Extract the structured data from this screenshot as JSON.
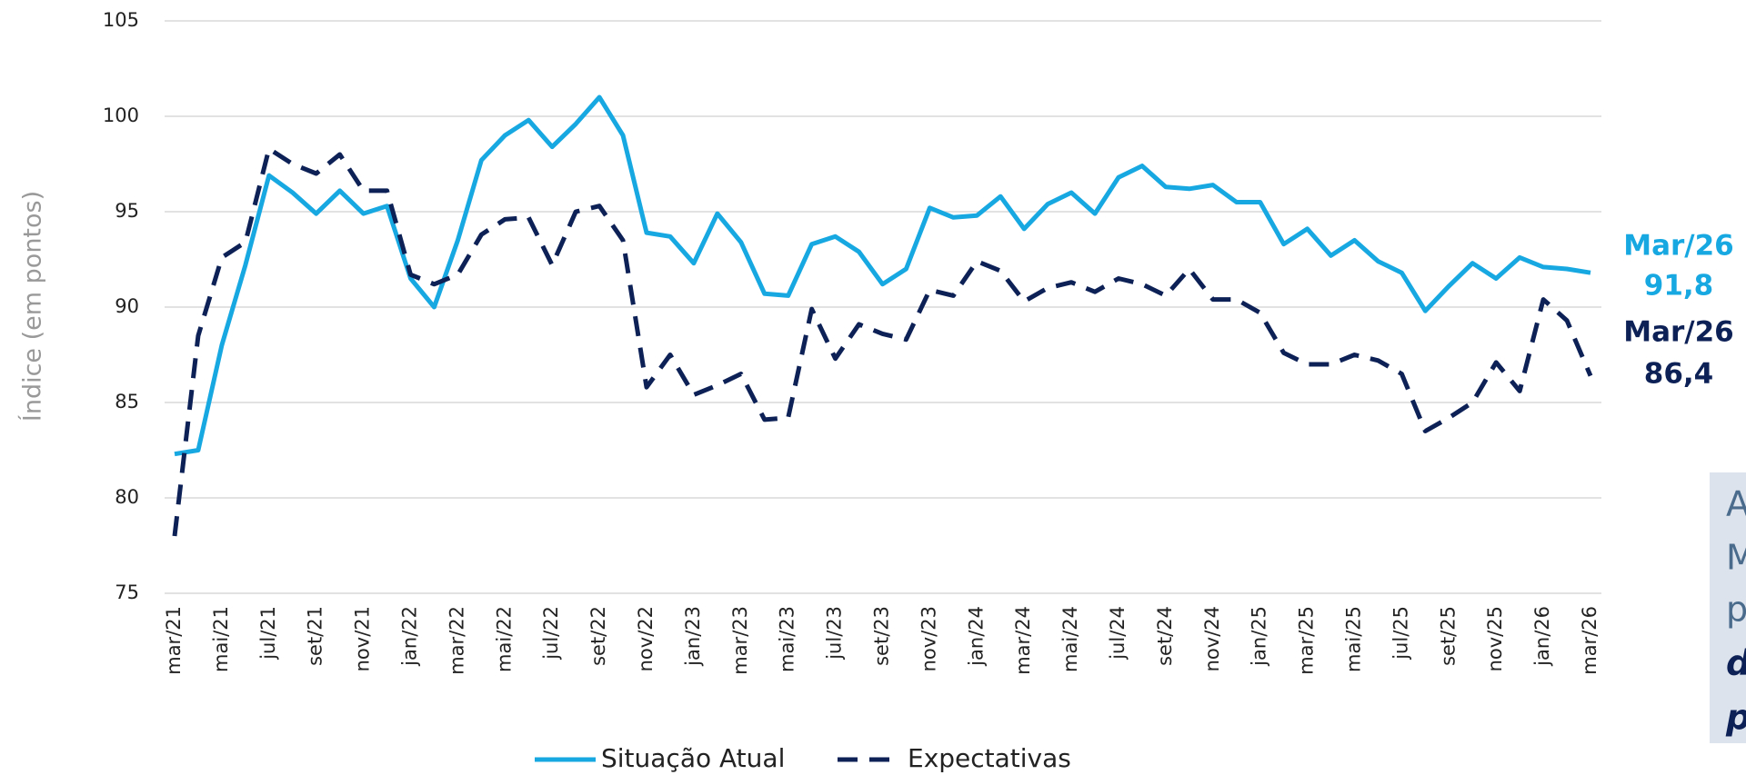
{
  "chart_data": {
    "type": "line",
    "y_axis_label": "Índice (em pontos)",
    "categories": [
      "mar/21",
      null,
      "mai/21",
      null,
      "jul/21",
      null,
      "set/21",
      null,
      "nov/21",
      null,
      "jan/22",
      null,
      "mar/22",
      null,
      "mai/22",
      null,
      "jul/22",
      null,
      "set/22",
      null,
      "nov/22",
      null,
      "jan/23",
      null,
      "mar/23",
      null,
      "mai/23",
      null,
      "jul/23",
      null,
      "set/23",
      null,
      "nov/23",
      null,
      "jan/24",
      null,
      "mar/24",
      null,
      "mai/24",
      null,
      "jul/24",
      null,
      "set/24",
      null,
      "nov/24",
      null,
      "jan/25",
      null,
      "mar/25",
      null,
      "mai/25",
      null,
      "jul/25",
      null,
      "set/25",
      null,
      "nov/25",
      null,
      "jan/26",
      null,
      "mar/26"
    ],
    "series": [
      {
        "name": "Situação Atual",
        "color": "#17a8e2",
        "dashed": false,
        "end_label": "Mar/26",
        "values": [
          82.3,
          82.5,
          88.0,
          92.2,
          96.9,
          96.0,
          94.9,
          96.1,
          94.9,
          95.3,
          91.5,
          90.0,
          93.5,
          97.7,
          99.0,
          99.8,
          98.4,
          99.6,
          101.0,
          99.0,
          93.9,
          93.7,
          92.3,
          94.9,
          93.4,
          90.7,
          90.6,
          93.3,
          93.7,
          92.9,
          91.2,
          92.0,
          95.2,
          94.7,
          94.8,
          95.8,
          94.1,
          95.4,
          96.0,
          94.9,
          96.8,
          97.4,
          96.3,
          96.2,
          96.4,
          95.5,
          95.5,
          93.3,
          94.1,
          92.7,
          93.5,
          92.4,
          91.8,
          89.8,
          91.1,
          92.3,
          91.5,
          92.6,
          92.1,
          92.0,
          91.8
        ],
        "value_labels": [
          null,
          null,
          null,
          null,
          null,
          null,
          null,
          null,
          null,
          null,
          null,
          null,
          null,
          null,
          null,
          null,
          null,
          null,
          null,
          null,
          null,
          null,
          null,
          null,
          null,
          null,
          null,
          null,
          null,
          null,
          null,
          null,
          null,
          null,
          null,
          null,
          null,
          null,
          null,
          null,
          null,
          null,
          null,
          null,
          null,
          null,
          null,
          null,
          null,
          null,
          null,
          null,
          null,
          null,
          null,
          null,
          null,
          null,
          null,
          null,
          "91,8"
        ]
      },
      {
        "name": "Expectativas",
        "color": "#0d2157",
        "dashed": true,
        "end_label": "Mar/26",
        "values": [
          78.0,
          88.5,
          92.6,
          93.4,
          98.3,
          97.5,
          97.0,
          98.0,
          96.1,
          96.1,
          91.7,
          91.2,
          91.7,
          93.8,
          94.6,
          94.7,
          92.2,
          95.0,
          95.3,
          93.5,
          85.8,
          87.5,
          85.4,
          85.9,
          86.5,
          84.1,
          84.2,
          89.9,
          87.3,
          89.1,
          88.6,
          88.3,
          90.9,
          90.6,
          92.4,
          91.9,
          90.3,
          91.0,
          91.3,
          90.8,
          91.5,
          91.2,
          90.6,
          92.0,
          90.4,
          90.4,
          89.7,
          87.6,
          87.0,
          87.0,
          87.5,
          87.2,
          86.5,
          83.5,
          84.2,
          85.0,
          87.1,
          85.6,
          90.4,
          89.3,
          86.4
        ],
        "value_labels": [
          null,
          null,
          null,
          null,
          null,
          null,
          null,
          null,
          null,
          null,
          null,
          null,
          null,
          null,
          null,
          null,
          null,
          null,
          null,
          null,
          null,
          null,
          null,
          null,
          null,
          null,
          null,
          null,
          null,
          null,
          null,
          null,
          null,
          null,
          null,
          null,
          null,
          null,
          null,
          null,
          null,
          null,
          null,
          null,
          null,
          null,
          null,
          null,
          null,
          null,
          null,
          null,
          null,
          null,
          null,
          null,
          null,
          null,
          null,
          null,
          "86,4"
        ]
      }
    ],
    "ylim": [
      75,
      105
    ],
    "yticks": [
      75,
      80,
      85,
      90,
      95,
      100,
      105
    ],
    "grid": true,
    "legend": "bottom",
    "callout_lines": [
      "A",
      "M",
      "p",
      "d",
      "p"
    ]
  }
}
